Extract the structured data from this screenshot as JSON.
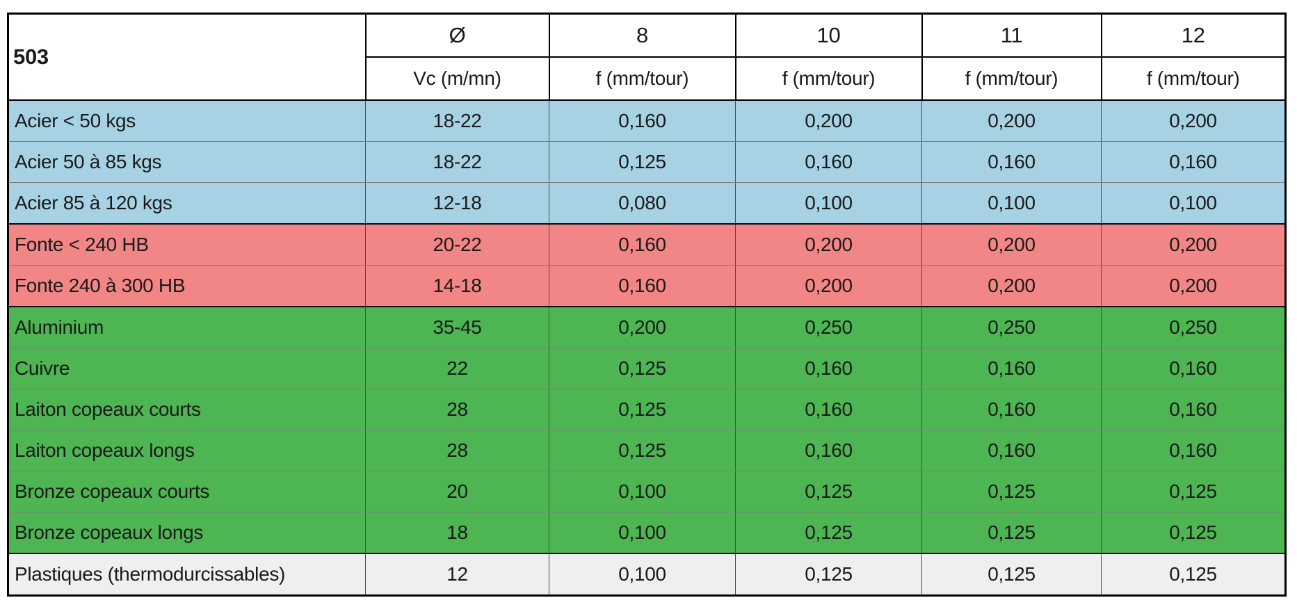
{
  "table": {
    "code": "503",
    "vc_column": {
      "symbol": "Ø",
      "unit": "Vc (m/mn)"
    },
    "f_columns": [
      {
        "diameter": "8",
        "unit": "f (mm/tour)"
      },
      {
        "diameter": "10",
        "unit": "f (mm/tour)"
      },
      {
        "diameter": "11",
        "unit": "f (mm/tour)"
      },
      {
        "diameter": "12",
        "unit": "f (mm/tour)"
      }
    ],
    "group_colors": {
      "acier": "#a6d2e3",
      "fonte": "#f28585",
      "non_ferreux": "#4eb553",
      "plastiques": "#efefef"
    },
    "rows": [
      {
        "material": "Acier < 50 kgs",
        "group": "acier",
        "vc": "18-22",
        "f": [
          "0,160",
          "0,200",
          "0,200",
          "0,200"
        ]
      },
      {
        "material": "Acier 50 à 85 kgs",
        "group": "acier",
        "vc": "18-22",
        "f": [
          "0,125",
          "0,160",
          "0,160",
          "0,160"
        ]
      },
      {
        "material": "Acier 85 à 120 kgs",
        "group": "acier",
        "vc": "12-18",
        "f": [
          "0,080",
          "0,100",
          "0,100",
          "0,100"
        ]
      },
      {
        "material": "Fonte < 240 HB",
        "group": "fonte",
        "vc": "20-22",
        "f": [
          "0,160",
          "0,200",
          "0,200",
          "0,200"
        ]
      },
      {
        "material": "Fonte 240 à 300 HB",
        "group": "fonte",
        "vc": "14-18",
        "f": [
          "0,160",
          "0,200",
          "0,200",
          "0,200"
        ]
      },
      {
        "material": "Aluminium",
        "group": "non_ferreux",
        "vc": "35-45",
        "f": [
          "0,200",
          "0,250",
          "0,250",
          "0,250"
        ]
      },
      {
        "material": "Cuivre",
        "group": "non_ferreux",
        "vc": "22",
        "f": [
          "0,125",
          "0,160",
          "0,160",
          "0,160"
        ]
      },
      {
        "material": "Laiton copeaux courts",
        "group": "non_ferreux",
        "vc": "28",
        "f": [
          "0,125",
          "0,160",
          "0,160",
          "0,160"
        ]
      },
      {
        "material": "Laiton copeaux longs",
        "group": "non_ferreux",
        "vc": "28",
        "f": [
          "0,125",
          "0,160",
          "0,160",
          "0,160"
        ]
      },
      {
        "material": "Bronze copeaux courts",
        "group": "non_ferreux",
        "vc": "20",
        "f": [
          "0,100",
          "0,125",
          "0,125",
          "0,125"
        ]
      },
      {
        "material": "Bronze copeaux longs",
        "group": "non_ferreux",
        "vc": "18",
        "f": [
          "0,100",
          "0,125",
          "0,125",
          "0,125"
        ]
      },
      {
        "material": "Plastiques (thermodurcissables)",
        "group": "plastiques",
        "vc": "12",
        "f": [
          "0,100",
          "0,125",
          "0,125",
          "0,125"
        ]
      }
    ]
  }
}
